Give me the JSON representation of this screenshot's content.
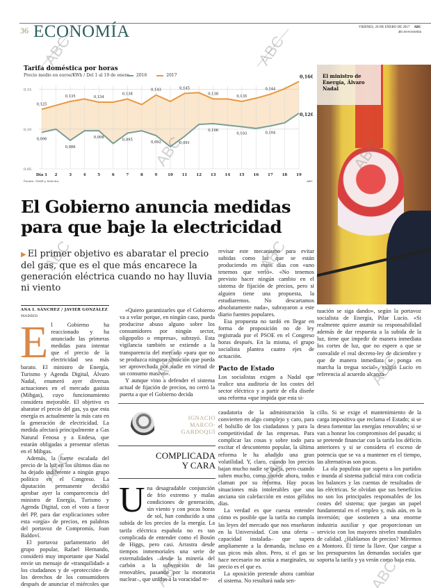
{
  "header": {
    "page_number": "36",
    "section": "ECONOMÍA",
    "date": "VIERNES, 20 DE ENERO DE 2017",
    "brand": "ABC",
    "url": "abc.es/economia"
  },
  "chart_data": {
    "type": "area",
    "title": "Tarifa doméstica por horas",
    "subtitle": "Precio medio en euros/KWh / Del 1 al 19 de enero",
    "xlabel": "",
    "ylabel": "",
    "ylim": [
      0.05,
      0.16
    ],
    "yticks": [
      "0,15",
      "0,10",
      "0,05"
    ],
    "categories": [
      "Día 1",
      "2",
      "3",
      "4",
      "5",
      "6",
      "7",
      "8",
      "9",
      "10",
      "11",
      "12",
      "13",
      "14",
      "15",
      "16",
      "17",
      "18",
      "19"
    ],
    "series": [
      {
        "name": "2016",
        "color": "#7a9e94",
        "values": [
          0.096,
          0.1,
          0.086,
          0.098,
          0.098,
          0.082,
          0.095,
          0.098,
          0.092,
          0.078,
          0.091,
          0.106,
          0.107,
          0.105,
          0.103,
          0.101,
          0.104,
          0.108,
          0.12
        ],
        "labels": {
          "0": "0,096",
          "2": "0,086",
          "4": "0,098",
          "6": "0,095",
          "8": "0,092",
          "10": "0,091",
          "12": "0,106",
          "14": "0,103",
          "16": "0,104",
          "18": "0,120"
        }
      },
      {
        "name": "2017",
        "color": "#e8973e",
        "values": [
          0.125,
          0.13,
          0.135,
          0.138,
          0.134,
          0.134,
          0.138,
          0.131,
          0.143,
          0.135,
          0.145,
          0.146,
          0.138,
          0.138,
          0.135,
          0.139,
          0.144,
          0.151,
          0.16
        ],
        "labels": {
          "0": "0,125",
          "2": "0,135",
          "4": "0,134",
          "6": "0,138",
          "8": "0,143",
          "10": "0,145",
          "12": "0,138",
          "14": "0,135",
          "16": "0,144",
          "18": "0,160"
        }
      }
    ],
    "grid": true,
    "legend_position": "top",
    "source": "Fuente: OMIE y Selectra",
    "brand": "ABC"
  },
  "photo": {
    "caption": [
      "El ministro de",
      "Energía, Álvaro",
      "Nadal"
    ]
  },
  "article": {
    "headline": [
      "El Gobierno anuncia medidas",
      "para que baje la electricidad"
    ],
    "subhead": "El primer objetivo es abaratar el precio del gas, que es el que más encarece la generación eléctrica cuando no hay lluvia ni viento",
    "byline": "ANA I. SÁNCHEZ / JAVIER GONZÁLEZ",
    "place": "MADRID",
    "dropcap": "E",
    "col1": [
      "l Gobierno ha reaccionado y ha anunciado las primeras medidas para intentar que el precio de la electricidad sea más barato. El ministro de Energía, Turismo y Agenda Digital, Álvaro Nadal, enumeró ayer diversas actuaciones en el mercado gasista (Mibgas), cuyo funcionamiento considera mejorable. El objetivo es abaratar el precio del gas, ya que esta energía es actualmente la más cara en la generación de electricidad. La medida afectará principalmente a Gas Natural Fenosa y a Endesa, que estarán obligadas a presentar ofertas en el Mibgas.",
      "Además, la fuerte escalada del precio de la luz en los últimos días no ha dejado indiferente a ningún grupo político en el Congreso. La diputación permanente decidió aprobar ayer la comparecencia del ministro de Energía, Turismo y Agenda Digital, con el voto a favor del PP, para dar explicaciones sobre esta «orgía» de precios, en palabras del portavoz de Compromís, Joan Baldoví.",
      "El portavoz parlamentario del grupo popular, Rafael Hernando, consideró muy importante que Nadal envíe un mensaje de «tranquilidad» a los ciudadanos y de «protección» de los derechos de los consumidores después de anunciar el miércoles que la factura eléctrica podrá subir cien euros más este año si se mantienen los actuales precios."
    ],
    "col2": [
      "«Quiero garantizarles que el Gobierno va a velar porque, en ningún caso, pueda producirse abuso alguno sobre los consumidores por ningún sector, oligopolio o empresa», subrayó. Esta vigilancia también se extiende a la transparencia del mercado «para que no se produzca ninguna situación que pueda ser aprovechada por nadie en virtud de un consumo masivo».",
      "Y aunque vino a defender el sistema actual de fijación de precios, no cerró la puerta a que el Gobierno decida"
    ],
    "col3": [
      "revisar este mecanismo para evitar subidas como las que se están produciendo en estos días con «uno tenemos que verlo». «No tenemos previsto hacer ningún cambio en el sistema de fijación de precios, pero si alguien tiene una propuesta, la estudiaremos. No descartamos absolutamente nada», subrayaron a este diario fuentes populares.",
      "Esa propuesta no tardó en llegar en forma de proposición no de ley registrada por el PSOE en el Congreso horas después. En la misma, el grupo socialista plantea cuatro ejes de actuación."
    ],
    "section_heading": "Pacto de Estado",
    "col3_after": "Los socialistas exigen a Nadal que realice una auditoría de los costes del sector eléctrico y a partir de ella diseñe una reforma «que impida que esta si-",
    "col4": "tuación se siga dando», según la portavoz socialista de Energía, Pilar Lucio. «Si realmente quiere asumir su responsabilidad además de dar respuesta a la subida de la luz, tiene que impedir de manera inmediata los cortes de luz, que no espere a que se convalide el real decreto-ley de diciembre y que de manera inmediata se ponga en marcha la tregua social», exigió Lucio en referencia al acuerdo alcanza-"
  },
  "opinion": {
    "author": [
      "IGNACIO",
      "MARCO-",
      "GARDOQUI"
    ],
    "title": [
      "COMPLICADA",
      "Y CARA"
    ],
    "dropcap": "U",
    "col1": "na desagradable conjunción de frío extremo y malas condiciones de generación, sin viento y con pocas horas de sol, han conducido a una subida de los precios de la energía. La tarifa eléctrica española no es tan complicada de entender como el Bosón de Higgs, pero casi. Arrastra desde tiempos inmemoriales una serie de externalidades –desde la minería del carbón a la subvención de las renovables, pasando por la moratoria nuclear–, que unidas a la voracidad re-",
    "col2": [
      "caudatoria de la administración la convierten en algo complejo y caro, para el bolsillo de los ciudadanos y para la competitividad de las empresas. Para complicar las cosas y sobre todo para excitar el descontento popular, la última reforma le ha añadido una gran volatilidad. Y, claro, cuando los precios bajan mucho nadie se queja, pero cuando suben mucho, como sucede ahora, todos claman por su reforma. Hay pocas situaciones más intolerables que una anciana sin calefacción en estos gélidos días.",
      "La verdad es que cuesta entender cómo es posible que la tarifa no cumpla las leyes del mercado que nos enseñaron en la Universidad. Con una oferta –capacidad instalada– que supera ampliamente a la demanda, incluso en sus picos más altos. Pero, si el gas se hace necesario no actúa a marginales, su precio es el que es.",
      "La oposición pretende ahora cambiar el sistema. No resultará nada sen-"
    ],
    "col3": [
      "cillo. Si se exige el mantenimiento de la carga impositiva que reclama el Estado; si se desea fomentar las energías renovables; si se van a honrar los compromisos del pasado; si se pretende financiar con la tarifa los déficits anteriores y si se considera el exceso de potencia que se va a mantener en el tiempo, las alternativas son pocas.",
      "La ola populista que supera a los partidos e inunda al sistema judicial mira con codicia los balances y las cuentas de resultados de las eléctricas. Se olvidan que sus beneficios no son los principales responsables de los costes del sistema; que juegan un papel fundamental en el empleo y, más aún, en la inversión; que sostienen a una enorme industria auxiliar y que proporcionan un servicio con los mayores niveles mundiales de calidad. ¿Hablamos de precios? Miremos a Montoro. Él tiene la llave. Que cargue a los presupuestos las demandas sociales que soporta la tarifa y ya verán como baja esta."
    ]
  },
  "watermark": "ABC"
}
